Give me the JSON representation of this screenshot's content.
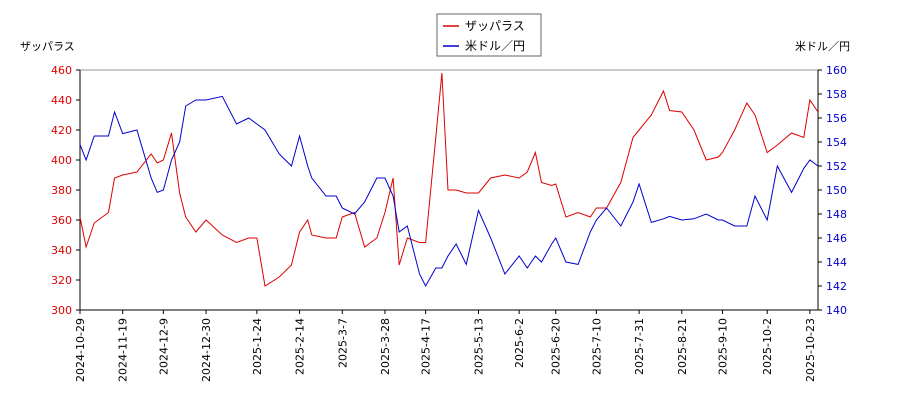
{
  "chart_data": {
    "type": "line",
    "y_label": "ザッパラス",
    "y2_label": "米ドル／円",
    "legend": "top",
    "grid": false,
    "x": [
      "2024-10-29",
      "2024-11-01",
      "2024-11-05",
      "2024-11-12",
      "2024-11-15",
      "2024-11-19",
      "2024-11-26",
      "2024-12-03",
      "2024-12-06",
      "2024-12-09",
      "2024-12-13",
      "2024-12-17",
      "2024-12-20",
      "2024-12-25",
      "2024-12-30",
      "2025-01-07",
      "2025-01-14",
      "2025-01-20",
      "2025-01-24",
      "2025-01-28",
      "2025-02-04",
      "2025-02-10",
      "2025-02-14",
      "2025-02-18",
      "2025-02-20",
      "2025-02-27",
      "2025-03-04",
      "2025-03-07",
      "2025-03-13",
      "2025-03-18",
      "2025-03-24",
      "2025-03-28",
      "2025-04-01",
      "2025-04-04",
      "2025-04-08",
      "2025-04-14",
      "2025-04-17",
      "2025-04-22",
      "2025-04-25",
      "2025-04-28",
      "2025-05-02",
      "2025-05-07",
      "2025-05-13",
      "2025-05-19",
      "2025-05-26",
      "2025-06-02",
      "2025-06-06",
      "2025-06-10",
      "2025-06-13",
      "2025-06-18",
      "2025-06-20",
      "2025-06-25",
      "2025-07-01",
      "2025-07-07",
      "2025-07-10",
      "2025-07-15",
      "2025-07-22",
      "2025-07-28",
      "2025-07-31",
      "2025-08-06",
      "2025-08-12",
      "2025-08-15",
      "2025-08-21",
      "2025-08-27",
      "2025-09-02",
      "2025-09-08",
      "2025-09-10",
      "2025-09-16",
      "2025-09-22",
      "2025-09-26",
      "2025-10-02",
      "2025-10-07",
      "2025-10-14",
      "2025-10-20",
      "2025-10-23",
      "2025-10-27"
    ],
    "xlim": [
      "2024-10-29",
      "2025-10-27"
    ],
    "xticks": [
      "2024-10-29",
      "2024-11-19",
      "2024-12-9",
      "2024-12-30",
      "2025-1-24",
      "2025-2-14",
      "2025-3-7",
      "2025-3-28",
      "2025-4-17",
      "2025-5-13",
      "2025-6-2",
      "2025-6-20",
      "2025-7-10",
      "2025-7-31",
      "2025-8-21",
      "2025-9-10",
      "2025-10-2",
      "2025-10-23"
    ],
    "ylim": [
      300,
      460
    ],
    "yticks": [
      300,
      320,
      340,
      360,
      380,
      400,
      420,
      440,
      460
    ],
    "y2lim": [
      140,
      160
    ],
    "y2ticks": [
      140,
      142,
      144,
      146,
      148,
      150,
      152,
      154,
      156,
      158,
      160
    ],
    "series": [
      {
        "name": "ザッパラス",
        "color": "#dd0000",
        "axis": "y",
        "values": [
          362,
          342,
          358,
          365,
          388,
          390,
          392,
          404,
          398,
          400,
          418,
          378,
          362,
          352,
          360,
          350,
          345,
          348,
          348,
          316,
          322,
          330,
          352,
          360,
          350,
          348,
          348,
          362,
          365,
          342,
          348,
          365,
          388,
          330,
          348,
          345,
          345,
          415,
          458,
          380,
          380,
          378,
          378,
          388,
          390,
          388,
          392,
          405,
          385,
          383,
          384,
          362,
          365,
          362,
          368,
          368,
          385,
          415,
          420,
          430,
          446,
          433,
          432,
          420,
          400,
          402,
          405,
          420,
          438,
          430,
          405,
          410,
          418,
          415,
          440,
          432
        ]
      },
      {
        "name": "米ドル／円",
        "color": "#0000cc",
        "axis": "y2",
        "values": [
          153.8,
          152.5,
          154.5,
          154.5,
          156.5,
          154.7,
          155,
          151,
          149.8,
          150,
          152.5,
          154,
          157,
          157.5,
          157.5,
          157.8,
          155.5,
          156,
          155.5,
          155,
          153,
          152,
          154.5,
          152,
          151,
          149.5,
          149.5,
          148.5,
          148,
          149,
          151,
          151,
          149.5,
          146.5,
          147,
          143,
          142,
          143.5,
          143.5,
          144.5,
          145.5,
          143.8,
          148.3,
          146,
          143,
          144.5,
          143.5,
          144.5,
          144,
          145.5,
          146,
          144,
          143.8,
          146.5,
          147.5,
          148.5,
          147,
          149,
          150.5,
          147.3,
          147.6,
          147.8,
          147.5,
          147.6,
          148,
          147.5,
          147.5,
          147,
          147,
          149.5,
          147.5,
          152,
          149.8,
          151.8,
          152.5,
          152
        ]
      }
    ]
  }
}
